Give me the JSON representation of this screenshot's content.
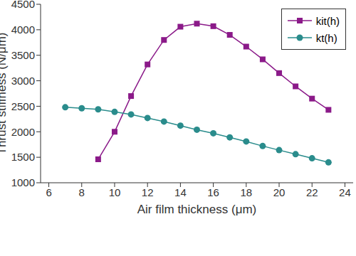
{
  "chart_data": {
    "type": "line",
    "x_label": "Air film thickness (μm)",
    "y_label": "Thrust stiffness (N/μm)",
    "xlim": [
      5.5,
      24.5
    ],
    "xticks": [
      6,
      8,
      10,
      12,
      14,
      16,
      18,
      20,
      22,
      24
    ],
    "ylim": [
      1000,
      4500
    ],
    "yticks": [
      1000,
      1500,
      2000,
      2500,
      3000,
      3500,
      4000,
      4500
    ],
    "grid": false,
    "legend": "top-right",
    "series": [
      {
        "name": "kit(h)",
        "color": "#8b1a89",
        "marker": "square",
        "x": [
          9,
          10,
          11,
          12,
          13,
          14,
          15,
          16,
          17,
          18,
          19,
          20,
          21,
          22,
          23
        ],
        "values": [
          1460,
          2000,
          2700,
          3320,
          3800,
          4060,
          4120,
          4070,
          3900,
          3670,
          3420,
          3150,
          2890,
          2650,
          2430
        ]
      },
      {
        "name": "kt(h)",
        "color": "#2a8c8c",
        "marker": "circle",
        "x": [
          7,
          8,
          9,
          10,
          11,
          12,
          13,
          14,
          15,
          16,
          17,
          18,
          19,
          20,
          21,
          22,
          23
        ],
        "values": [
          2480,
          2460,
          2440,
          2390,
          2340,
          2270,
          2200,
          2120,
          2040,
          1970,
          1890,
          1810,
          1720,
          1640,
          1560,
          1480,
          1400
        ]
      }
    ]
  }
}
